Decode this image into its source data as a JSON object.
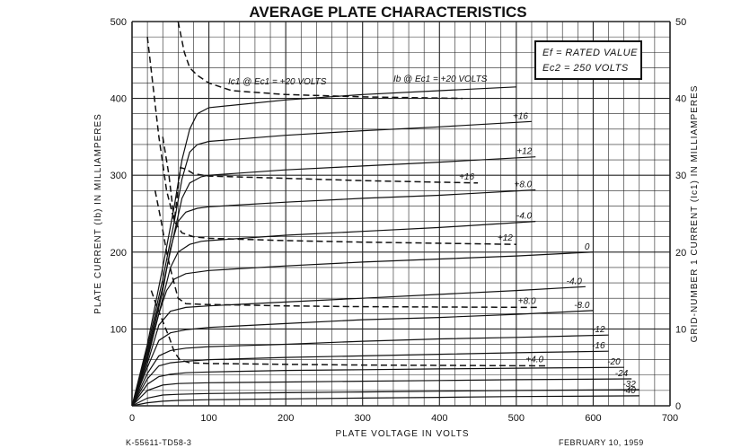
{
  "chart_data": {
    "type": "line",
    "title": "AVERAGE PLATE CHARACTERISTICS",
    "xlabel": "PLATE VOLTAGE IN VOLTS",
    "ylabel": "PLATE CURRENT (Ib) IN MILLIAMPERES",
    "y2label": "GRID-NUMBER 1 CURRENT (Ic1) IN MILLIAMPERES",
    "xlim": [
      0,
      700
    ],
    "ylim": [
      0,
      500
    ],
    "y2lim": [
      0,
      50
    ],
    "grid": true,
    "x_ticks": [
      "0",
      "100",
      "200",
      "300",
      "400",
      "500",
      "600",
      "700"
    ],
    "y_ticks": [
      "100",
      "200",
      "300",
      "400",
      "500"
    ],
    "y2_ticks": [
      "0",
      "10",
      "20",
      "30",
      "40",
      "50"
    ],
    "legend_box": [
      "Ef = RATED VALUE",
      "Ec2 = 250 VOLTS"
    ],
    "annotations": [
      {
        "text": "Ic1 @ Ec1 = +20 VOLTS",
        "x": 125,
        "y": 418
      },
      {
        "text": "Ib @ Ec1 = +20 VOLTS",
        "x": 340,
        "y": 422
      }
    ],
    "plate_current_curves": [
      {
        "label": "",
        "points": [
          [
            0,
            0
          ],
          [
            20,
            80
          ],
          [
            40,
            180
          ],
          [
            55,
            260
          ],
          [
            65,
            320
          ],
          [
            75,
            360
          ],
          [
            85,
            380
          ],
          [
            100,
            388
          ],
          [
            200,
            398
          ],
          [
            300,
            405
          ],
          [
            400,
            410
          ],
          [
            500,
            415
          ]
        ]
      },
      {
        "label": "+16",
        "points": [
          [
            0,
            0
          ],
          [
            20,
            75
          ],
          [
            40,
            165
          ],
          [
            55,
            240
          ],
          [
            65,
            295
          ],
          [
            75,
            330
          ],
          [
            85,
            340
          ],
          [
            100,
            344
          ],
          [
            200,
            352
          ],
          [
            300,
            358
          ],
          [
            400,
            363
          ],
          [
            520,
            370
          ]
        ]
      },
      {
        "label": "+12",
        "points": [
          [
            0,
            0
          ],
          [
            20,
            70
          ],
          [
            40,
            155
          ],
          [
            55,
            225
          ],
          [
            65,
            270
          ],
          [
            75,
            290
          ],
          [
            90,
            298
          ],
          [
            100,
            300
          ],
          [
            200,
            307
          ],
          [
            300,
            312
          ],
          [
            400,
            317
          ],
          [
            525,
            324
          ]
        ]
      },
      {
        "label": "+8.0",
        "points": [
          [
            0,
            0
          ],
          [
            20,
            65
          ],
          [
            40,
            150
          ],
          [
            50,
            205
          ],
          [
            60,
            240
          ],
          [
            70,
            252
          ],
          [
            85,
            257
          ],
          [
            100,
            259
          ],
          [
            200,
            265
          ],
          [
            300,
            270
          ],
          [
            400,
            274
          ],
          [
            525,
            281
          ]
        ]
      },
      {
        "label": "-4.0",
        "points": [
          [
            0,
            0
          ],
          [
            20,
            62
          ],
          [
            40,
            140
          ],
          [
            50,
            180
          ],
          [
            60,
            200
          ],
          [
            75,
            210
          ],
          [
            90,
            214
          ],
          [
            100,
            215
          ],
          [
            200,
            222
          ],
          [
            300,
            227
          ],
          [
            400,
            232
          ],
          [
            525,
            240
          ]
        ]
      },
      {
        "label": "0",
        "points": [
          [
            0,
            0
          ],
          [
            20,
            60
          ],
          [
            35,
            120
          ],
          [
            45,
            150
          ],
          [
            55,
            165
          ],
          [
            70,
            172
          ],
          [
            100,
            176
          ],
          [
            200,
            182
          ],
          [
            300,
            187
          ],
          [
            400,
            191
          ],
          [
            500,
            195
          ],
          [
            600,
            200
          ]
        ]
      },
      {
        "label": "-4.0",
        "points": [
          [
            0,
            0
          ],
          [
            20,
            55
          ],
          [
            35,
            105
          ],
          [
            50,
            123
          ],
          [
            70,
            128
          ],
          [
            100,
            130
          ],
          [
            200,
            135
          ],
          [
            300,
            140
          ],
          [
            400,
            145
          ],
          [
            500,
            150
          ],
          [
            590,
            155
          ]
        ]
      },
      {
        "label": "-8.0",
        "points": [
          [
            0,
            0
          ],
          [
            20,
            50
          ],
          [
            35,
            85
          ],
          [
            50,
            95
          ],
          [
            70,
            99
          ],
          [
            100,
            102
          ],
          [
            200,
            107
          ],
          [
            300,
            112
          ],
          [
            400,
            115
          ],
          [
            500,
            119
          ],
          [
            600,
            124
          ]
        ]
      },
      {
        "label": "-12",
        "points": [
          [
            0,
            0
          ],
          [
            20,
            42
          ],
          [
            35,
            65
          ],
          [
            50,
            72
          ],
          [
            70,
            75
          ],
          [
            100,
            77
          ],
          [
            200,
            80
          ],
          [
            300,
            84
          ],
          [
            400,
            87
          ],
          [
            500,
            89
          ],
          [
            620,
            92
          ]
        ]
      },
      {
        "label": "-16",
        "points": [
          [
            0,
            0
          ],
          [
            20,
            35
          ],
          [
            35,
            52
          ],
          [
            50,
            56
          ],
          [
            70,
            58
          ],
          [
            100,
            60
          ],
          [
            200,
            63
          ],
          [
            300,
            65
          ],
          [
            400,
            67
          ],
          [
            500,
            69
          ],
          [
            620,
            71
          ]
        ]
      },
      {
        "label": "-20",
        "points": [
          [
            0,
            0
          ],
          [
            20,
            28
          ],
          [
            35,
            38
          ],
          [
            50,
            41
          ],
          [
            70,
            43
          ],
          [
            100,
            44
          ],
          [
            200,
            46
          ],
          [
            300,
            47
          ],
          [
            400,
            48
          ],
          [
            500,
            49
          ],
          [
            640,
            50
          ]
        ]
      },
      {
        "label": "-24",
        "points": [
          [
            0,
            0
          ],
          [
            20,
            20
          ],
          [
            40,
            27
          ],
          [
            60,
            29
          ],
          [
            100,
            30
          ],
          [
            200,
            31
          ],
          [
            300,
            32
          ],
          [
            400,
            33
          ],
          [
            500,
            34
          ],
          [
            650,
            35
          ]
        ]
      },
      {
        "label": "-32",
        "points": [
          [
            0,
            0
          ],
          [
            20,
            10
          ],
          [
            40,
            14
          ],
          [
            60,
            15
          ],
          [
            100,
            16
          ],
          [
            200,
            17
          ],
          [
            300,
            18
          ],
          [
            400,
            19
          ],
          [
            500,
            20
          ],
          [
            660,
            21
          ]
        ]
      },
      {
        "label": "-40",
        "points": [
          [
            0,
            0
          ],
          [
            20,
            4
          ],
          [
            40,
            6
          ],
          [
            60,
            7
          ],
          [
            100,
            8
          ],
          [
            200,
            9
          ],
          [
            300,
            10
          ],
          [
            400,
            11
          ],
          [
            500,
            12
          ],
          [
            660,
            13
          ]
        ]
      }
    ],
    "grid_current_curves": [
      {
        "label": "",
        "points": [
          [
            60,
            50
          ],
          [
            68,
            46
          ],
          [
            75,
            44
          ],
          [
            85,
            43
          ],
          [
            100,
            42
          ],
          [
            130,
            41
          ],
          [
            200,
            40.5
          ],
          [
            300,
            40.2
          ],
          [
            430,
            40
          ]
        ]
      },
      {
        "label": "+16",
        "points": [
          [
            40,
            35
          ],
          [
            48,
            30
          ],
          [
            55,
            24
          ],
          [
            63,
            31
          ],
          [
            70,
            30.8
          ],
          [
            80,
            30.2
          ],
          [
            100,
            29.9
          ],
          [
            200,
            29.6
          ],
          [
            300,
            29.3
          ],
          [
            450,
            29
          ]
        ]
      },
      {
        "label": "+12",
        "points": [
          [
            20,
            48
          ],
          [
            35,
            35
          ],
          [
            45,
            28
          ],
          [
            55,
            24
          ],
          [
            65,
            22.5
          ],
          [
            80,
            22
          ],
          [
            100,
            21.8
          ],
          [
            200,
            21.5
          ],
          [
            300,
            21.3
          ],
          [
            500,
            21
          ]
        ]
      },
      {
        "label": "+8.0",
        "points": [
          [
            30,
            28
          ],
          [
            38,
            24
          ],
          [
            45,
            20
          ],
          [
            52,
            17
          ],
          [
            60,
            14
          ],
          [
            70,
            13.3
          ],
          [
            90,
            13.2
          ],
          [
            200,
            13
          ],
          [
            300,
            12.9
          ],
          [
            530,
            12.8
          ]
        ]
      },
      {
        "label": "+4.0",
        "points": [
          [
            25,
            15
          ],
          [
            32,
            13
          ],
          [
            40,
            11
          ],
          [
            48,
            9
          ],
          [
            55,
            7
          ],
          [
            62,
            6
          ],
          [
            75,
            5.6
          ],
          [
            100,
            5.5
          ],
          [
            200,
            5.4
          ],
          [
            300,
            5.3
          ],
          [
            540,
            5.2
          ]
        ]
      }
    ],
    "footer_left": "K-55611-TD58-3",
    "footer_right": "FEBRUARY 10, 1959"
  }
}
